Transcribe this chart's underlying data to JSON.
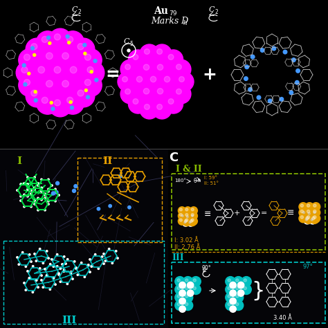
{
  "bg_color": "#000000",
  "magenta_color": "#FF00FF",
  "gold_color": "#E8A000",
  "green_color": "#00DD44",
  "cyan_color": "#00CCCC",
  "teal_color": "#00BFBF",
  "white_color": "#FFFFFF",
  "blue_dot_color": "#4499FF",
  "yellow_dot_color": "#FFFF00",
  "panel_c_label": "C",
  "roman_I_color": "#88BB00",
  "roman_II_color": "#E8A000",
  "roman_III_color": "#00CCCC",
  "I_and_II_color": "#88BB00",
  "I_dist": "I: 3.02 Å",
  "II_dist": "II: 2.76 Å",
  "III_dist": "3.40 Å",
  "angle_I": "I: 59°",
  "angle_II": "II: 51°",
  "angle_180": "180°",
  "angle_97": "97°",
  "theta": "θ",
  "equiv_sign": "≡",
  "green_box_color": "#88BB00",
  "teal_box_color": "#00CCCC",
  "gold_box_color": "#E8A000",
  "orange_box_color": "#E8A000"
}
